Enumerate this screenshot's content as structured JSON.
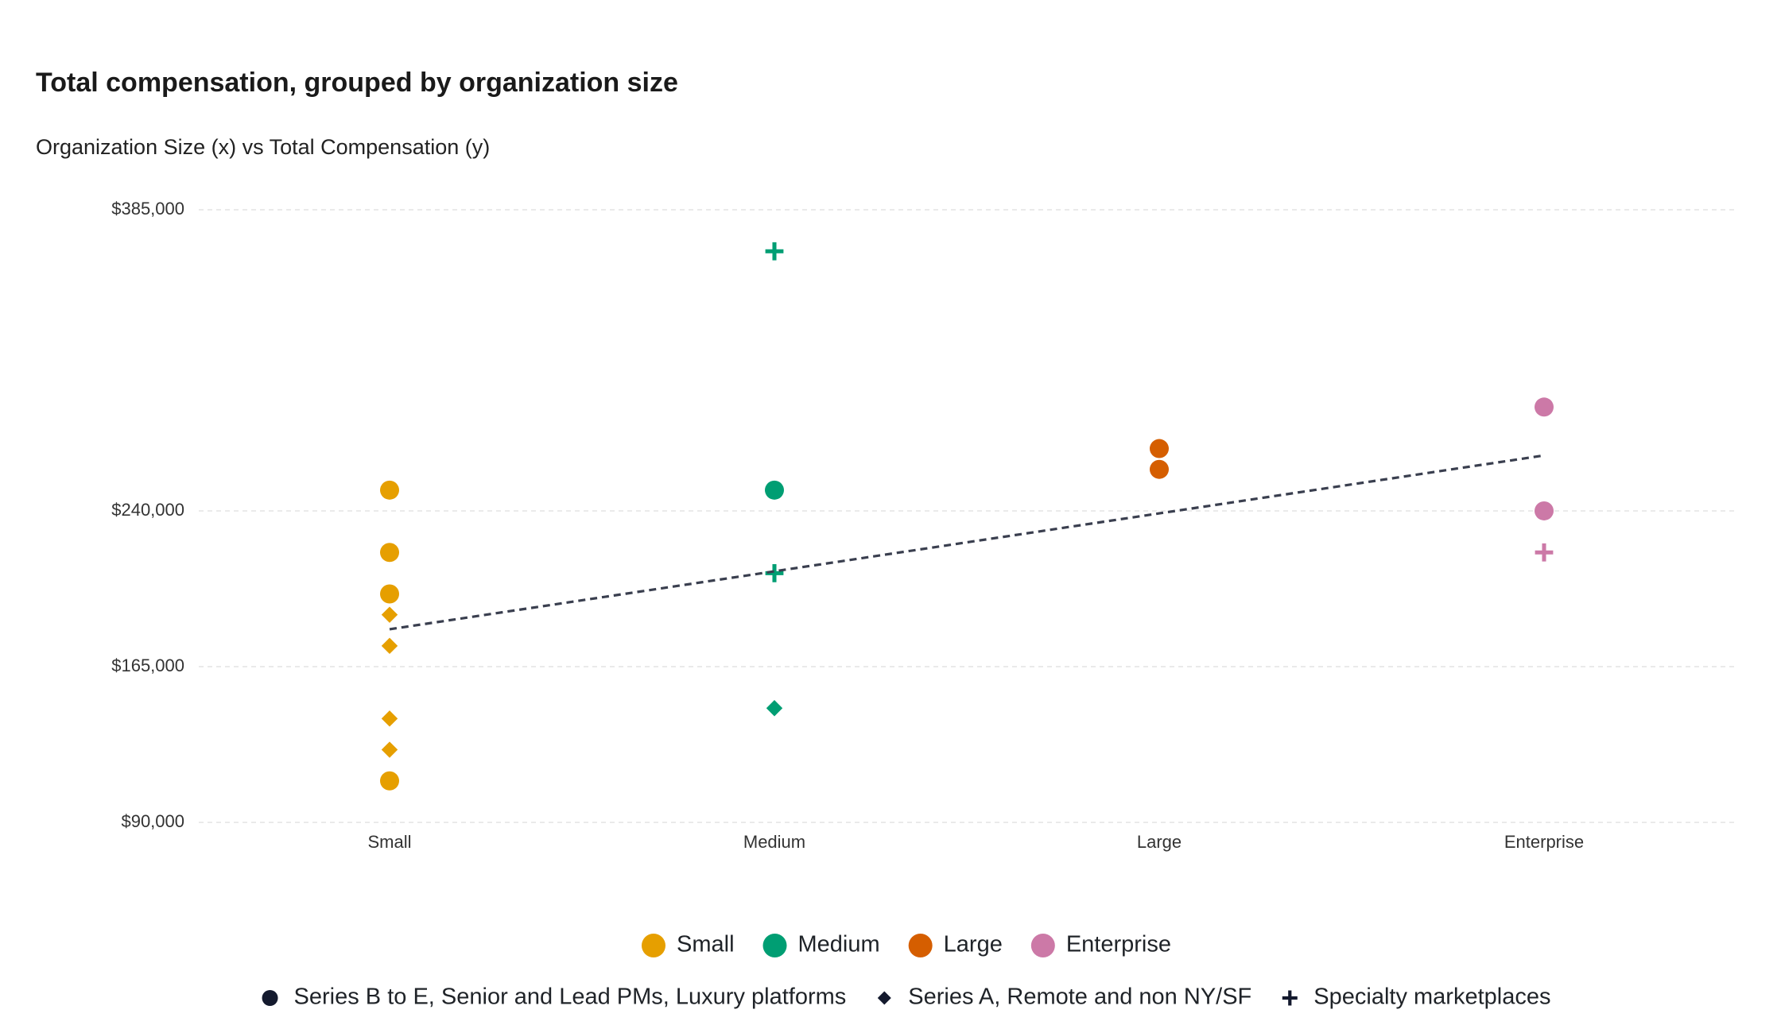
{
  "chart_data": {
    "type": "scatter",
    "title": "Total compensation, grouped by organization size",
    "subtitle": "Organization Size (x) vs Total Compensation (y)",
    "categories": [
      "Small",
      "Medium",
      "Large",
      "Enterprise"
    ],
    "ylim": [
      90000,
      385000
    ],
    "yticks": [
      {
        "value": 90000,
        "label": "$90,000"
      },
      {
        "value": 165000,
        "label": "$165,000"
      },
      {
        "value": 240000,
        "label": "$240,000"
      },
      {
        "value": 385000,
        "label": "$385,000"
      }
    ],
    "grid": true,
    "shapes": [
      {
        "name": "Series B to E, Senior and Lead PMs, Luxury platforms",
        "marker": "circle"
      },
      {
        "name": "Series A, Remote and non NY/SF",
        "marker": "diamond"
      },
      {
        "name": "Specialty marketplaces",
        "marker": "plus"
      }
    ],
    "shape_legend_color": "#141a2e",
    "series": [
      {
        "name": "Small",
        "color": "#e69f00",
        "values_by_shape": [
          [
            250000,
            220000,
            200000,
            110000
          ],
          [
            190000,
            175000,
            140000,
            125000
          ],
          []
        ]
      },
      {
        "name": "Medium",
        "color": "#009e73",
        "values_by_shape": [
          [
            250000
          ],
          [
            145000
          ],
          [
            365000,
            210000
          ]
        ]
      },
      {
        "name": "Large",
        "color": "#d55e00",
        "values_by_shape": [
          [
            270000,
            260000
          ],
          [],
          []
        ]
      },
      {
        "name": "Enterprise",
        "color": "#cc79a7",
        "values_by_shape": [
          [
            290000,
            240000
          ],
          [],
          [
            220000
          ]
        ]
      }
    ],
    "trendline": {
      "values": [
        183000,
        210900,
        238800,
        266700
      ],
      "color": "#3a3f4f"
    }
  }
}
